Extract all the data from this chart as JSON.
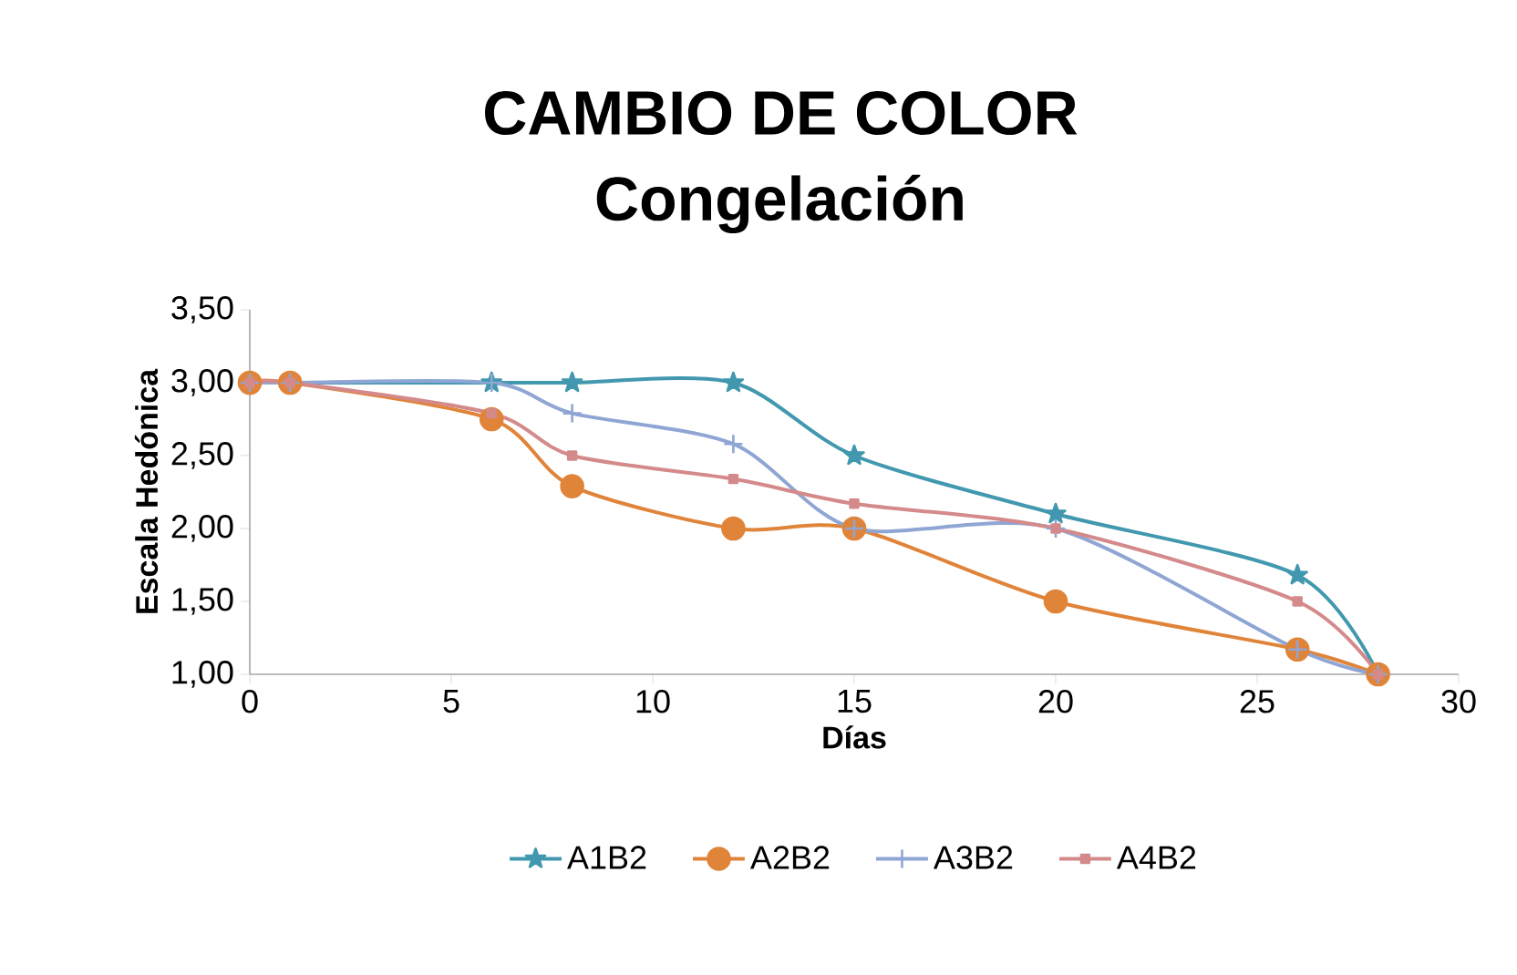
{
  "chart_data": {
    "type": "line",
    "title": "CAMBIO DE COLOR",
    "subtitle": "Congelación",
    "xlabel": "Días",
    "ylabel": "Escala Hedónica",
    "x": [
      0,
      1,
      6,
      8,
      12,
      15,
      20,
      26,
      28
    ],
    "series": [
      {
        "name": "A1B2",
        "color": "#4198af",
        "marker": "star",
        "values": [
          3,
          3,
          3,
          3,
          3,
          2.5,
          2.1,
          1.68,
          1
        ]
      },
      {
        "name": "A2B2",
        "color": "#e0843a",
        "marker": "circle",
        "values": [
          3,
          3,
          2.75,
          2.29,
          2,
          2,
          1.5,
          1.17,
          1
        ]
      },
      {
        "name": "A3B2",
        "color": "#8fa6d4",
        "marker": "cross",
        "values": [
          3,
          3,
          3,
          2.79,
          2.58,
          2,
          2,
          1.17,
          1
        ]
      },
      {
        "name": "A4B2",
        "color": "#d48a8a",
        "marker": "square",
        "values": [
          3,
          3,
          2.79,
          2.5,
          2.34,
          2.17,
          2,
          1.5,
          1
        ]
      }
    ],
    "xlim": [
      0,
      30
    ],
    "xticks": [
      0,
      5,
      10,
      15,
      20,
      25,
      30
    ],
    "ylim": [
      1,
      3.5
    ],
    "yticks": [
      {
        "value": 1,
        "label": "1,00"
      },
      {
        "value": 1.5,
        "label": "1,50"
      },
      {
        "value": 2,
        "label": "2,00"
      },
      {
        "value": 2.5,
        "label": "2,50"
      },
      {
        "value": 3,
        "label": "3,00"
      },
      {
        "value": 3.5,
        "label": "3,50"
      }
    ],
    "grid": false,
    "legend": "bottom"
  }
}
